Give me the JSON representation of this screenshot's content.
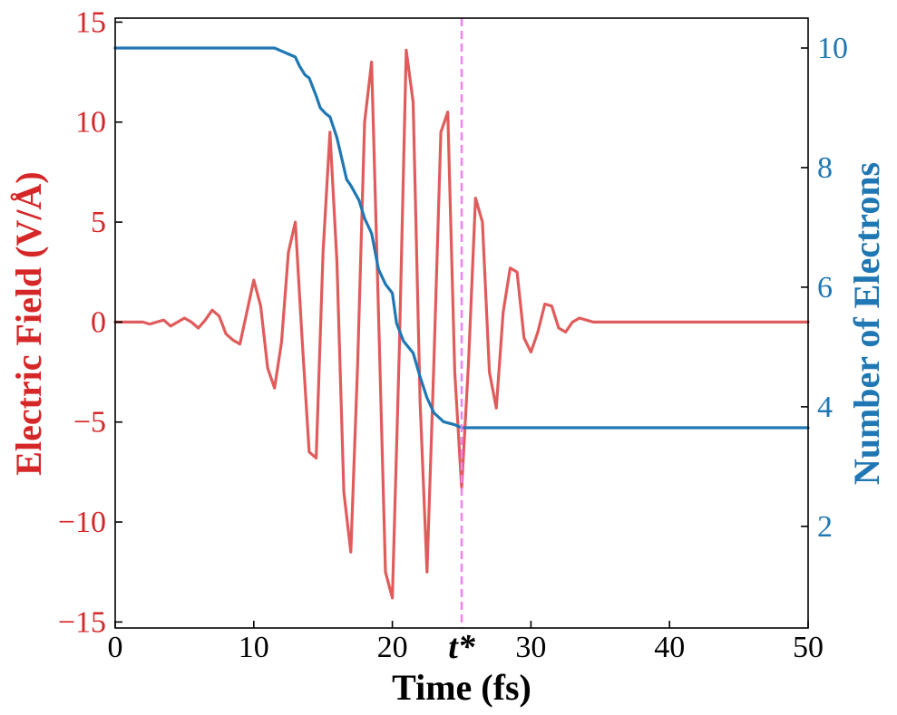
{
  "chart_data": {
    "type": "line",
    "xlabel": "Time (fs)",
    "ylabel_left": "Electric Field (V/Å)",
    "ylabel_right": "Number of Electrons",
    "xlim": [
      0,
      50
    ],
    "ylim_left": [
      -15.3,
      15.2
    ],
    "ylim_right": [
      0.3,
      10.5
    ],
    "x_ticks": [
      {
        "value": 0,
        "label": "0"
      },
      {
        "value": 10,
        "label": "10"
      },
      {
        "value": 20,
        "label": "20"
      },
      {
        "value": 30,
        "label": "30"
      },
      {
        "value": 40,
        "label": "40"
      },
      {
        "value": 50,
        "label": "50"
      }
    ],
    "y_left_ticks": [
      {
        "value": 15,
        "label": "15"
      },
      {
        "value": 10,
        "label": "10"
      },
      {
        "value": 5,
        "label": "5"
      },
      {
        "value": 0,
        "label": "0"
      },
      {
        "value": -5,
        "label": "−5"
      },
      {
        "value": -10,
        "label": "−10"
      },
      {
        "value": -15,
        "label": "−15"
      }
    ],
    "y_right_ticks": [
      {
        "value": 10,
        "label": "10"
      },
      {
        "value": 8,
        "label": "8"
      },
      {
        "value": 6,
        "label": "6"
      },
      {
        "value": 4,
        "label": "4"
      },
      {
        "value": 2,
        "label": "2"
      }
    ],
    "marker": {
      "x": 25,
      "label": "t*",
      "color": "#ee82ee",
      "style": "dashed"
    },
    "colors": {
      "field": "#e05c5c",
      "electrons": "#1f77b4",
      "left_axis": "#d62728",
      "right_axis": "#1f77b4"
    },
    "series": [
      {
        "axis": "left",
        "color": "#e05c5c",
        "x": [
          0,
          0.5,
          1,
          1.5,
          2,
          2.5,
          3,
          3.5,
          4,
          4.5,
          5,
          5.5,
          6,
          6.5,
          7,
          7.5,
          8,
          8.5,
          9,
          9.5,
          10,
          10.5,
          11,
          11.5,
          12,
          12.5,
          13,
          13.5,
          14,
          14.5,
          15,
          15.5,
          16,
          16.5,
          17,
          17.5,
          18,
          18.5,
          19,
          19.5,
          20,
          20.5,
          21,
          21.5,
          22,
          22.5,
          23,
          23.5,
          24,
          24.5,
          25,
          25.5,
          26,
          26.5,
          27,
          27.5,
          28,
          28.5,
          29,
          29.5,
          30,
          30.5,
          31,
          31.5,
          32,
          32.5,
          33,
          33.5,
          34,
          34.5,
          35,
          35.5,
          36,
          36.5,
          37,
          37.5,
          38,
          39,
          40,
          42,
          45,
          50
        ],
        "y": [
          0,
          0,
          0,
          0,
          0,
          -0.1,
          0,
          0.1,
          -0.2,
          0,
          0.2,
          0,
          -0.3,
          0.1,
          0.6,
          0.3,
          -0.6,
          -0.9,
          -1.1,
          0.5,
          2.1,
          0.8,
          -2.3,
          -3.3,
          -1.0,
          3.5,
          5.0,
          -1.0,
          -6.5,
          -6.8,
          3.5,
          9.5,
          3.0,
          -8.5,
          -11.5,
          -2.0,
          10.0,
          13.0,
          0.5,
          -12.5,
          -13.8,
          -1.5,
          13.6,
          11.0,
          -4.0,
          -12.5,
          -2.0,
          9.5,
          10.5,
          -2.5,
          -8.3,
          -2.0,
          6.2,
          5.0,
          -2.5,
          -4.3,
          0.5,
          2.7,
          2.5,
          -0.8,
          -1.5,
          -0.5,
          0.9,
          0.8,
          -0.3,
          -0.5,
          0,
          0.2,
          0.1,
          0,
          0,
          0,
          0,
          0,
          0,
          0,
          0,
          0,
          0,
          0,
          0,
          0
        ]
      },
      {
        "axis": "right",
        "color": "#1f77b4",
        "x": [
          0,
          11.5,
          12,
          12.5,
          13,
          13.3,
          13.7,
          14,
          14.5,
          14.8,
          15.2,
          15.5,
          16.0,
          16.3,
          16.7,
          17.0,
          17.6,
          18.0,
          18.5,
          19.0,
          19.5,
          20.0,
          20.3,
          20.8,
          21.5,
          22.0,
          22.5,
          23.0,
          23.7,
          24.5,
          25.0,
          30,
          40,
          50
        ],
        "y": [
          10.0,
          10.0,
          9.95,
          9.9,
          9.85,
          9.7,
          9.55,
          9.5,
          9.2,
          9.0,
          8.9,
          8.85,
          8.5,
          8.2,
          7.8,
          7.7,
          7.45,
          7.15,
          6.9,
          6.3,
          6.05,
          5.9,
          5.4,
          5.1,
          4.9,
          4.5,
          4.15,
          3.9,
          3.75,
          3.7,
          3.65,
          3.65,
          3.65,
          3.65
        ]
      }
    ]
  }
}
